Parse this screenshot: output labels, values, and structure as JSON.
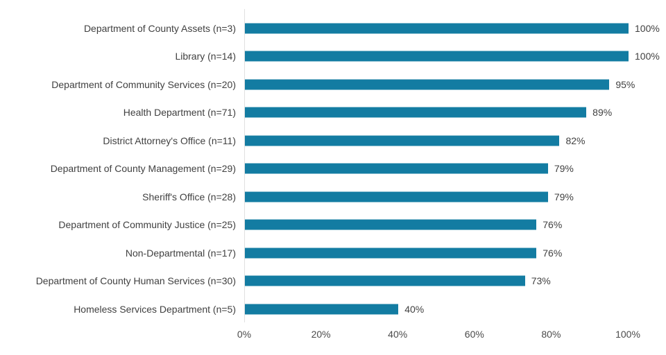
{
  "chart_data": {
    "type": "bar",
    "orientation": "horizontal",
    "title": "",
    "xlabel": "",
    "ylabel": "",
    "categories": [
      "Department of County Assets (n=3)",
      "Library (n=14)",
      "Department of Community Services (n=20)",
      "Health Department (n=71)",
      "District Attorney's Office (n=11)",
      "Department of County Management (n=29)",
      "Sheriff's Office (n=28)",
      "Department of Community Justice (n=25)",
      "Non-Departmental (n=17)",
      "Department of County Human Services (n=30)",
      "Homeless Services Department (n=5)"
    ],
    "values": [
      100,
      100,
      95,
      89,
      82,
      79,
      79,
      76,
      76,
      73,
      40
    ],
    "value_labels": [
      "100%",
      "100%",
      "95%",
      "89%",
      "82%",
      "79%",
      "79%",
      "76%",
      "76%",
      "73%",
      "40%"
    ],
    "xlim": [
      0,
      100
    ],
    "x_tick_values": [
      0,
      20,
      40,
      60,
      80,
      100
    ],
    "x_tick_labels": [
      "0%",
      "20%",
      "40%",
      "60%",
      "80%",
      "100%"
    ],
    "grid": false,
    "legend_position": "none",
    "colors": {
      "bar": "#137CA2",
      "axis_line": "#E1E1E1",
      "label_text": "#404040",
      "tick_text": "#4A4A4A",
      "background": "#FFFFFF"
    }
  }
}
